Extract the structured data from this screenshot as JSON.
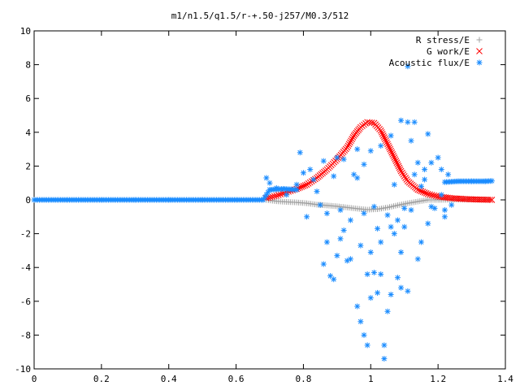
{
  "chart_data": {
    "type": "scatter",
    "title": "m1/n1.5/q1.5/r-+.50-j257/M0.3/512",
    "xlabel": "",
    "ylabel": "",
    "xlim": [
      0,
      1.4
    ],
    "ylim": [
      -10,
      10
    ],
    "x_ticks": [
      0,
      0.2,
      0.4,
      0.6,
      0.8,
      1,
      1.2,
      1.4
    ],
    "y_ticks": [
      -10,
      -8,
      -6,
      -4,
      -2,
      0,
      2,
      4,
      6,
      8,
      10
    ],
    "x_tick_labels": [
      "0",
      "0.2",
      "0.4",
      "0.6",
      "0.8",
      "1",
      "1.2",
      "1.4"
    ],
    "y_tick_labels": [
      "-10",
      "-8",
      "-6",
      "-4",
      "-2",
      "0",
      "2",
      "4",
      "6",
      "8",
      "10"
    ],
    "grid": false,
    "legend_position": "top-right",
    "series": [
      {
        "name": "R stress/E",
        "marker": "plus",
        "color": "#a0a0a0",
        "points": [
          [
            0.69,
            0.0
          ],
          [
            0.72,
            -0.08
          ],
          [
            0.75,
            -0.12
          ],
          [
            0.78,
            -0.15
          ],
          [
            0.81,
            -0.2
          ],
          [
            0.84,
            -0.28
          ],
          [
            0.87,
            -0.33
          ],
          [
            0.9,
            -0.38
          ],
          [
            0.93,
            -0.45
          ],
          [
            0.96,
            -0.52
          ],
          [
            0.99,
            -0.58
          ],
          [
            1.02,
            -0.55
          ],
          [
            1.05,
            -0.45
          ],
          [
            1.08,
            -0.32
          ],
          [
            1.11,
            -0.2
          ],
          [
            1.14,
            -0.1
          ],
          [
            1.17,
            0.0
          ],
          [
            1.2,
            0.0
          ],
          [
            1.25,
            0.02
          ],
          [
            1.3,
            0.02
          ],
          [
            1.35,
            0.02
          ]
        ]
      },
      {
        "name": "G work/E",
        "marker": "cross",
        "color": "#ff0000",
        "points": [
          [
            0.69,
            0.1
          ],
          [
            0.72,
            0.25
          ],
          [
            0.75,
            0.45
          ],
          [
            0.78,
            0.65
          ],
          [
            0.81,
            0.9
          ],
          [
            0.84,
            1.3
          ],
          [
            0.87,
            1.8
          ],
          [
            0.9,
            2.4
          ],
          [
            0.93,
            3.1
          ],
          [
            0.95,
            3.8
          ],
          [
            0.97,
            4.3
          ],
          [
            0.99,
            4.6
          ],
          [
            1.01,
            4.55
          ],
          [
            1.03,
            4.1
          ],
          [
            1.05,
            3.3
          ],
          [
            1.07,
            2.5
          ],
          [
            1.09,
            1.7
          ],
          [
            1.11,
            1.1
          ],
          [
            1.14,
            0.6
          ],
          [
            1.17,
            0.35
          ],
          [
            1.2,
            0.2
          ],
          [
            1.24,
            0.1
          ],
          [
            1.28,
            0.05
          ],
          [
            1.32,
            0.02
          ],
          [
            1.36,
            0.0
          ]
        ]
      },
      {
        "name": "Acoustic flux/E",
        "marker": "star",
        "color": "#1a8cff",
        "baseline_points": [
          [
            0.0,
            0.0
          ],
          [
            0.1,
            0.0
          ],
          [
            0.2,
            0.0
          ],
          [
            0.3,
            0.0
          ],
          [
            0.4,
            0.0
          ],
          [
            0.5,
            0.0
          ],
          [
            0.6,
            0.0
          ],
          [
            0.68,
            0.0
          ],
          [
            0.7,
            0.6
          ],
          [
            0.74,
            0.65
          ],
          [
            0.78,
            0.6
          ],
          [
            1.22,
            1.05
          ],
          [
            1.26,
            1.1
          ],
          [
            1.3,
            1.1
          ],
          [
            1.34,
            1.1
          ],
          [
            1.36,
            1.12
          ]
        ],
        "points": [
          [
            0.69,
            1.3
          ],
          [
            0.7,
            1.0
          ],
          [
            0.72,
            0.7
          ],
          [
            0.75,
            0.3
          ],
          [
            0.78,
            0.9
          ],
          [
            0.79,
            2.8
          ],
          [
            0.8,
            1.6
          ],
          [
            0.81,
            -1.0
          ],
          [
            0.82,
            1.8
          ],
          [
            0.83,
            1.2
          ],
          [
            0.84,
            0.5
          ],
          [
            0.85,
            -0.3
          ],
          [
            0.86,
            2.3
          ],
          [
            0.86,
            -3.8
          ],
          [
            0.87,
            -0.8
          ],
          [
            0.87,
            -2.5
          ],
          [
            0.88,
            -4.5
          ],
          [
            0.89,
            1.4
          ],
          [
            0.89,
            -4.7
          ],
          [
            0.9,
            2.5
          ],
          [
            0.9,
            -3.3
          ],
          [
            0.91,
            -2.3
          ],
          [
            0.91,
            -0.6
          ],
          [
            0.92,
            -1.8
          ],
          [
            0.92,
            2.4
          ],
          [
            0.93,
            -3.6
          ],
          [
            0.94,
            -1.2
          ],
          [
            0.94,
            -3.5
          ],
          [
            0.95,
            1.5
          ],
          [
            0.96,
            -6.3
          ],
          [
            0.96,
            1.3
          ],
          [
            0.97,
            -7.2
          ],
          [
            0.97,
            -2.7
          ],
          [
            0.98,
            -8.0
          ],
          [
            0.98,
            -0.8
          ],
          [
            0.99,
            -4.4
          ],
          [
            0.99,
            -8.6
          ],
          [
            1.0,
            -3.1
          ],
          [
            1.0,
            -5.8
          ],
          [
            1.01,
            -4.3
          ],
          [
            1.01,
            -0.4
          ],
          [
            1.02,
            -5.5
          ],
          [
            1.02,
            -1.7
          ],
          [
            1.03,
            -4.4
          ],
          [
            1.03,
            -2.5
          ],
          [
            1.04,
            -8.6
          ],
          [
            1.04,
            -9.4
          ],
          [
            1.05,
            -6.6
          ],
          [
            1.05,
            -0.9
          ],
          [
            1.06,
            -5.6
          ],
          [
            1.06,
            -1.6
          ],
          [
            1.07,
            0.9
          ],
          [
            1.07,
            -2.0
          ],
          [
            1.08,
            -4.6
          ],
          [
            1.08,
            -1.2
          ],
          [
            1.09,
            -5.2
          ],
          [
            1.09,
            -3.1
          ],
          [
            1.1,
            -1.6
          ],
          [
            1.1,
            -0.5
          ],
          [
            1.11,
            4.6
          ],
          [
            1.11,
            -5.4
          ],
          [
            1.12,
            -0.6
          ],
          [
            1.13,
            1.5
          ],
          [
            1.14,
            -3.5
          ],
          [
            1.14,
            2.2
          ],
          [
            1.15,
            -2.5
          ],
          [
            1.15,
            0.8
          ],
          [
            1.16,
            1.2
          ],
          [
            1.16,
            1.8
          ],
          [
            1.17,
            3.9
          ],
          [
            1.17,
            -1.4
          ],
          [
            1.18,
            -0.4
          ],
          [
            1.18,
            2.2
          ],
          [
            1.19,
            -0.5
          ],
          [
            1.2,
            2.5
          ],
          [
            1.21,
            1.8
          ],
          [
            1.21,
            0.3
          ],
          [
            1.22,
            -1.0
          ],
          [
            1.23,
            1.5
          ],
          [
            1.24,
            -0.3
          ],
          [
            1.11,
            7.9
          ],
          [
            1.06,
            3.8
          ],
          [
            1.09,
            4.7
          ],
          [
            1.13,
            4.6
          ],
          [
            1.03,
            3.2
          ],
          [
            1.12,
            3.5
          ],
          [
            1.22,
            -0.6
          ],
          [
            1.0,
            2.9
          ],
          [
            0.96,
            3.0
          ],
          [
            0.98,
            2.1
          ]
        ]
      }
    ]
  }
}
